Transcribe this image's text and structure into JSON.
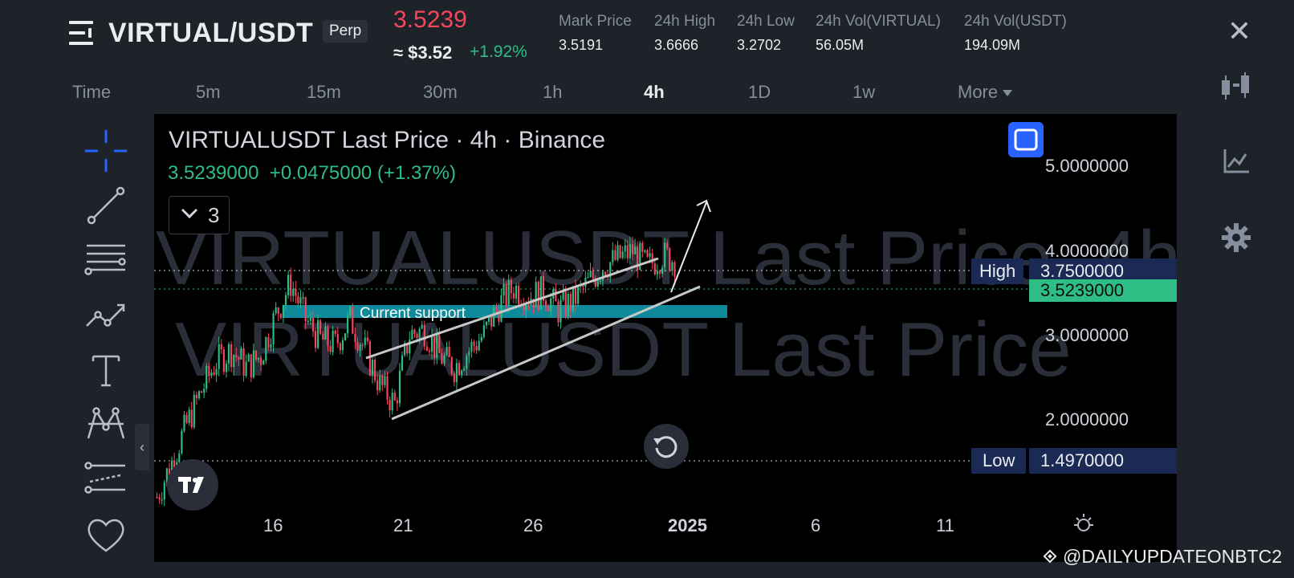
{
  "header": {
    "symbol": "VIRTUAL/USDT",
    "contract_type": "Perp",
    "last_price": "3.5239",
    "usd_price": "≈ $3.52",
    "change_pct": "+1.92%",
    "stats": [
      {
        "label": "Mark Price",
        "value": "3.5191"
      },
      {
        "label": "24h High",
        "value": "3.6666"
      },
      {
        "label": "24h Low",
        "value": "3.2702"
      },
      {
        "label": "24h Vol(VIRTUAL)",
        "value": "56.05M"
      },
      {
        "label": "24h Vol(USDT)",
        "value": "194.09M"
      }
    ]
  },
  "intervals": {
    "items": [
      "Time",
      "5m",
      "15m",
      "30m",
      "1h",
      "4h",
      "1D",
      "1w",
      "More"
    ],
    "active": "4h"
  },
  "chart": {
    "title": "VIRTUALUSDT Last Price · 4h · Binance",
    "last_value": "3.5239000",
    "change": "+0.0475000 (+1.37%)",
    "indicator_count": "3",
    "watermark_line1": "VIRTUALUSDT Last Price, 4h",
    "watermark_line2": "VIRTUALUSDT Last Price",
    "support_label": "Current support",
    "high_label": "High",
    "high_value": "3.7500000",
    "low_label": "Low",
    "low_value": "1.4970000",
    "current_value": "3.5239000"
  },
  "chart_data": {
    "type": "candlestick",
    "title": "VIRTUALUSDT Last Price · 4h · Binance",
    "y_scale": "log",
    "y_ticks": [
      "5.0000000",
      "4.0000000",
      "3.0000000",
      "2.0000000"
    ],
    "x_ticks": [
      "16",
      "21",
      "26",
      "2025",
      "6",
      "11"
    ],
    "ylim": [
      1.3,
      6.0
    ],
    "high": 3.75,
    "low": 1.497,
    "last": 3.5239,
    "annotations": [
      "Current support",
      "High",
      "Low"
    ],
    "approx_close_path": [
      1.5,
      1.7,
      1.95,
      2.2,
      2.45,
      2.55,
      2.4,
      2.5,
      2.9,
      3.25,
      2.85,
      2.65,
      2.6,
      2.85,
      2.55,
      2.25,
      2.1,
      2.7,
      2.75,
      2.5,
      2.4,
      2.55,
      2.7,
      3.0,
      3.2,
      3.1,
      3.15,
      2.95,
      3.05,
      3.25,
      3.45,
      3.55,
      3.65,
      3.45,
      3.6,
      3.52
    ]
  },
  "colors": {
    "background": "#1e2329",
    "chart_bg": "#000000",
    "up": "#2ebd85",
    "down": "#f6465d",
    "support_band": "#0e8a9b",
    "accent": "#2962ff"
  },
  "icons": {
    "menu": "menu-icon",
    "close": "close-icon",
    "candles": "candles-icon",
    "depth": "chart-line-icon",
    "settings": "gear-icon"
  },
  "credit": "@DAILYUPDATEONBTC2"
}
